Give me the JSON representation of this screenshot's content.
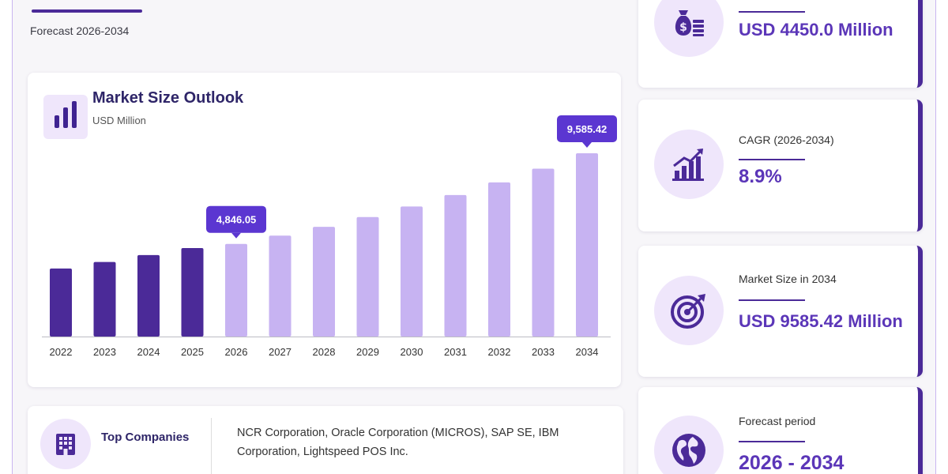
{
  "header": {
    "forecast_text": "Forecast 2026-2034"
  },
  "chart_card": {
    "title": "Market Size Outlook",
    "unit": "USD Million"
  },
  "chart_data": {
    "type": "bar",
    "title": "Market Size Outlook",
    "ylabel": "USD Million",
    "categories": [
      "2022",
      "2023",
      "2024",
      "2025",
      "2026",
      "2027",
      "2028",
      "2029",
      "2030",
      "2031",
      "2032",
      "2033",
      "2034"
    ],
    "values": [
      3560,
      3900,
      4260,
      4630,
      4846.05,
      5280,
      5740,
      6250,
      6800,
      7400,
      8060,
      8780,
      9585.42
    ],
    "historical_years": [
      "2022",
      "2023",
      "2024",
      "2025"
    ],
    "callouts": [
      {
        "category": "2026",
        "label": "4,846.05"
      },
      {
        "category": "2034",
        "label": "9,585.42"
      }
    ],
    "ylim": [
      0,
      9585.42
    ],
    "colors": {
      "historical": "#4b2a98",
      "forecast": "#c7b3f2",
      "callout": "#5b36d1"
    },
    "grid": false,
    "legend": "none"
  },
  "stats": [
    {
      "label": "",
      "value": "USD 4450.0 Million",
      "icon": "money-bag-icon"
    },
    {
      "label": "CAGR (2026-2034)",
      "value": "8.9%",
      "icon": "growth-chart-icon"
    },
    {
      "label": "Market Size in 2034",
      "value": "USD 9585.42 Million",
      "icon": "target-icon"
    },
    {
      "label": "Forecast period",
      "value": "2026 - 2034",
      "icon": "globe-icon"
    }
  ],
  "companies": {
    "title": "Top Companies",
    "text": "NCR Corporation, Oracle Corporation (MICROS), SAP SE, IBM Corporation, Lightspeed POS Inc.",
    "icon": "building-icon"
  }
}
